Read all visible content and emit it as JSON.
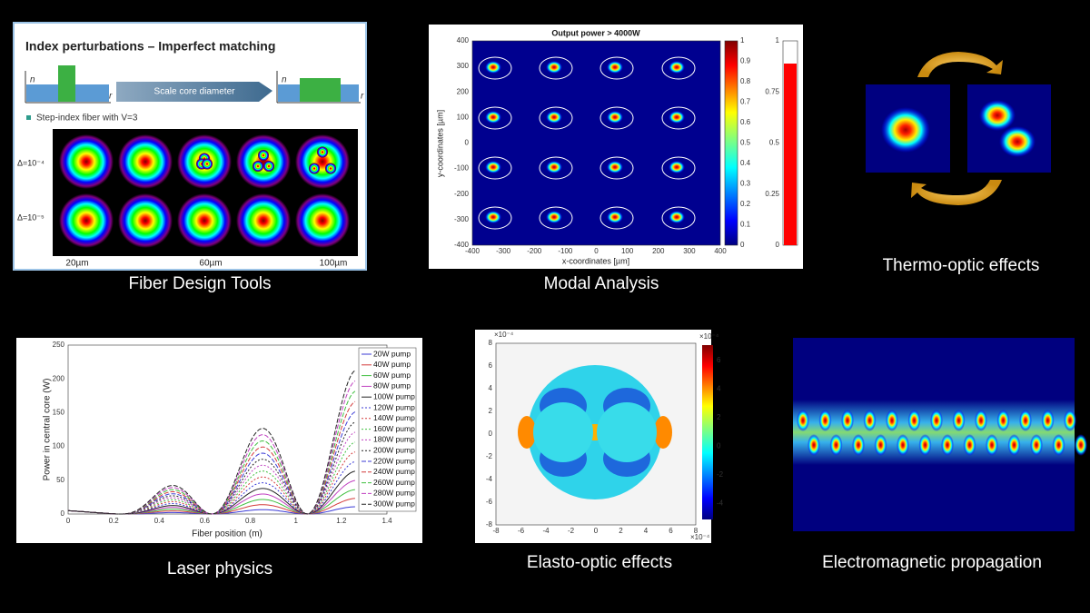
{
  "panels": [
    {
      "caption": "Fiber Design Tools",
      "title": "Index perturbations – Imperfect matching",
      "arrow_label": "Scale core diameter",
      "axis_n": "n",
      "axis_r": "r",
      "bullet": "Step-index fiber with V=3",
      "row_labels": [
        "Δ=10⁻⁴",
        "Δ=10⁻⁵"
      ],
      "column_labels": [
        "20µm",
        "60µm",
        "100µm"
      ]
    },
    {
      "caption": "Modal Analysis",
      "title": "Output power > 4000W",
      "x_label": "x-coordinates [µm]",
      "y_label": "y-coordinates [µm]",
      "xticks": [
        "-400",
        "-300",
        "-200",
        "-100",
        "0",
        "100",
        "200",
        "300",
        "400"
      ],
      "yticks": [
        "400",
        "300",
        "200",
        "100",
        "0",
        "-100",
        "-200",
        "-300",
        "-400"
      ],
      "colorbar_ticks": [
        "1",
        "0.9",
        "0.8",
        "0.7",
        "0.6",
        "0.5",
        "0.4",
        "0.3",
        "0.2",
        "0.1",
        "0"
      ],
      "bar_ticks": [
        "1",
        "0.75",
        "0.5",
        "0.25",
        "0"
      ]
    },
    {
      "caption": "Thermo-optic effects"
    },
    {
      "caption": "Laser physics",
      "x_label": "Fiber position (m)",
      "y_label": "Power in central core (W)",
      "xticks": [
        "0",
        "0.2",
        "0.4",
        "0.6",
        "0.8",
        "1",
        "1.2",
        "1.4"
      ],
      "yticks": [
        "250",
        "200",
        "150",
        "100",
        "50",
        "0"
      ],
      "legend": [
        "20W pump",
        "40W pump",
        "60W pump",
        "80W pump",
        "100W pump",
        "120W pump",
        "140W pump",
        "160W pump",
        "180W pump",
        "200W pump",
        "220W pump",
        "240W pump",
        "260W pump",
        "280W pump",
        "300W pump"
      ]
    },
    {
      "caption": "Elasto-optic effects",
      "x_exponent": "×10⁻⁴",
      "y_exponent": "×10⁻⁴",
      "colorbar_exponent": "×10⁻⁴",
      "xticks": [
        "-8",
        "-6",
        "-4",
        "-2",
        "0",
        "2",
        "4",
        "6",
        "8"
      ],
      "yticks": [
        "8",
        "6",
        "4",
        "2",
        "0",
        "-2",
        "-4",
        "-6",
        "-8"
      ],
      "colorbar_ticks": [
        "6",
        "4",
        "2",
        "0",
        "-2",
        "-4"
      ]
    },
    {
      "caption": "Electromagnetic propagation"
    }
  ]
}
